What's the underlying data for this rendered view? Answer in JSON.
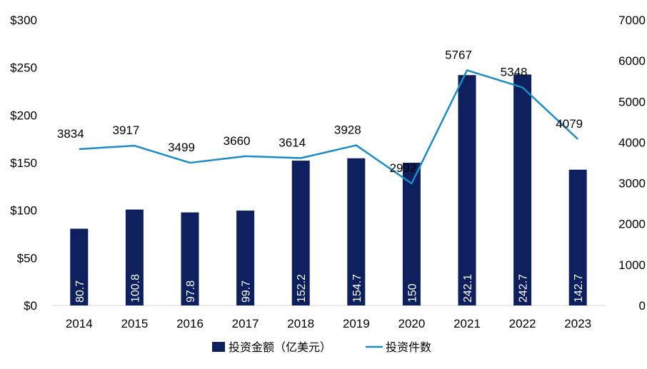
{
  "chart_data": {
    "type": "bar",
    "categories": [
      "2014",
      "2015",
      "2016",
      "2017",
      "2018",
      "2019",
      "2020",
      "2021",
      "2022",
      "2023"
    ],
    "series": [
      {
        "name": "投资金额（亿美元）",
        "type": "bar",
        "axis": "left",
        "color": "#0d1f5c",
        "values": [
          80.7,
          100.8,
          97.8,
          99.7,
          152.2,
          154.7,
          150,
          242.1,
          242.7,
          142.7
        ],
        "labels": [
          "80.7",
          "100.8",
          "97.8",
          "99.7",
          "152.2",
          "154.7",
          "150",
          "242.1",
          "242.7",
          "142.7"
        ]
      },
      {
        "name": "投资件数",
        "type": "line",
        "axis": "right",
        "color": "#1a8cc6",
        "values": [
          3834,
          3917,
          3499,
          3660,
          3614,
          3928,
          2992,
          5767,
          5348,
          4079
        ],
        "labels": [
          "3834",
          "3917",
          "3499",
          "3660",
          "3614",
          "3928",
          "2992",
          "5767",
          "5348",
          "4079"
        ]
      }
    ],
    "y_left": {
      "min": 0,
      "max": 300,
      "ticks": [
        0,
        50,
        100,
        150,
        200,
        250,
        300
      ],
      "tick_labels": [
        "$0",
        "$50",
        "$100",
        "$150",
        "$200",
        "$250",
        "$300"
      ]
    },
    "y_right": {
      "min": 0,
      "max": 7000,
      "ticks": [
        0,
        1000,
        2000,
        3000,
        4000,
        5000,
        6000,
        7000
      ],
      "tick_labels": [
        "0",
        "1000",
        "2000",
        "3000",
        "4000",
        "5000",
        "6000",
        "7000"
      ]
    },
    "grid": false,
    "legend_position": "bottom-center"
  }
}
